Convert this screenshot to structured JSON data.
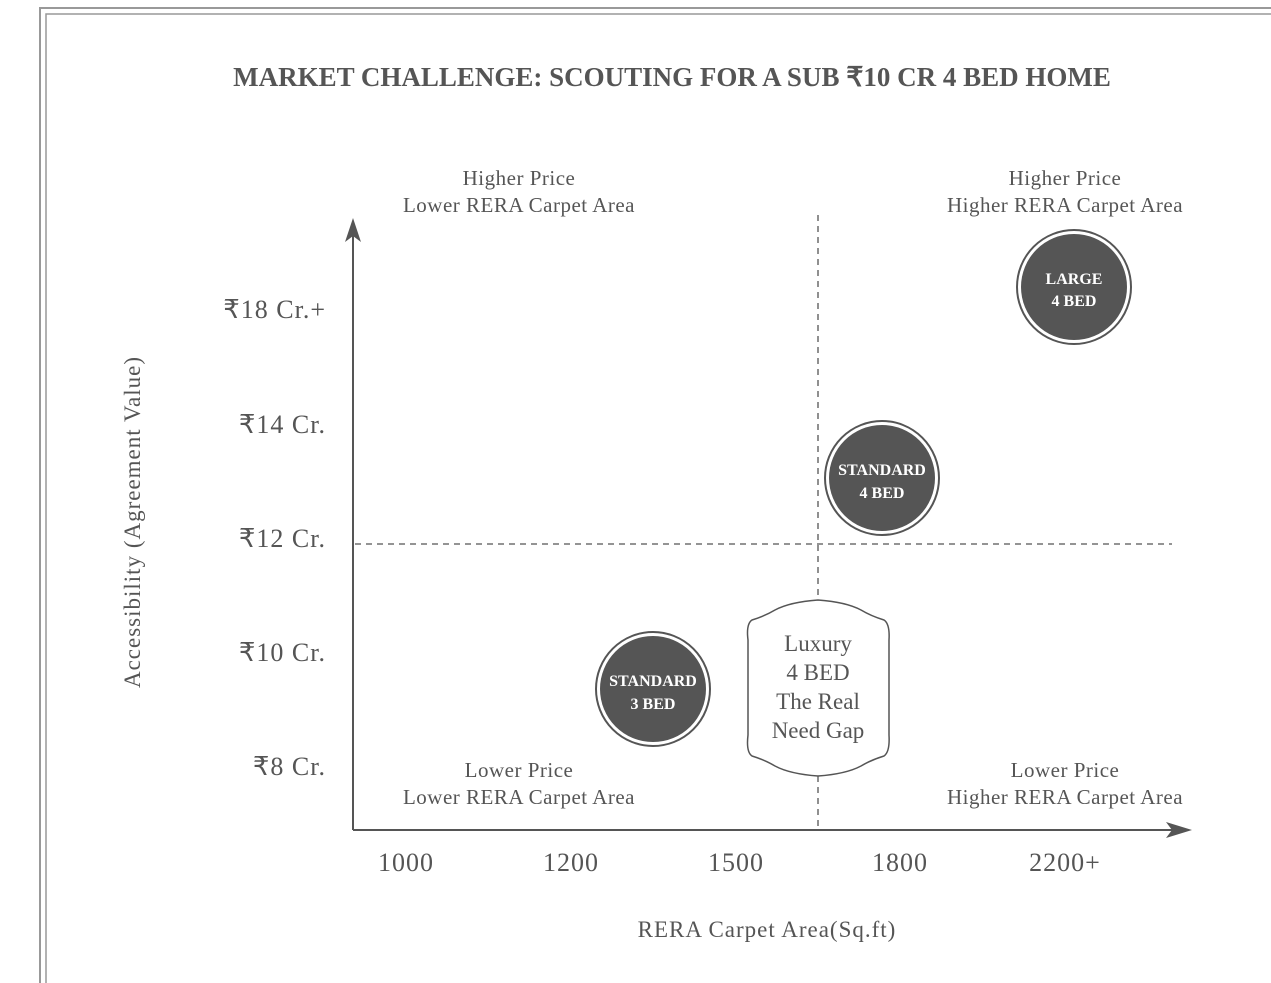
{
  "title": "MARKET CHALLENGE: SCOUTING FOR A SUB ₹10 CR 4 BED HOME",
  "quadrants": {
    "top_left": [
      "Higher Price",
      "Lower RERA Carpet Area"
    ],
    "top_right": [
      "Higher Price",
      "Higher RERA Carpet Area"
    ],
    "bottom_left": [
      "Lower Price",
      "Lower RERA Carpet Area"
    ],
    "bottom_right": [
      "Lower Price",
      "Higher RERA Carpet Area"
    ]
  },
  "y_axis": {
    "label": "Accessibility (Agreement Value)",
    "ticks": [
      "₹18 Cr.+",
      "₹14 Cr.",
      "₹12 Cr.",
      "₹10 Cr.",
      "₹8 Cr."
    ]
  },
  "x_axis": {
    "label": "RERA Carpet Area(Sq.ft)",
    "ticks": [
      "1000",
      "1200",
      "1500",
      "1800",
      "2200+"
    ]
  },
  "bubbles": [
    {
      "lines": [
        "LARGE",
        "4 BED"
      ]
    },
    {
      "lines": [
        "STANDARD",
        "4 BED"
      ]
    },
    {
      "lines": [
        "STANDARD",
        "3 BED"
      ]
    }
  ],
  "gap": {
    "lines": [
      "Luxury",
      "4 BED",
      "The Real",
      "Need Gap"
    ]
  }
}
